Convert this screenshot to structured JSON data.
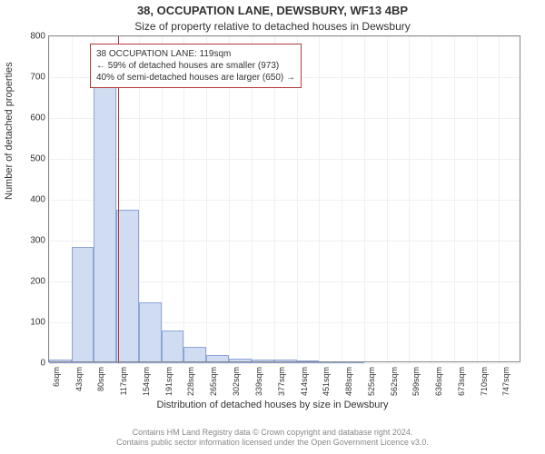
{
  "chart": {
    "type": "histogram",
    "title_line1": "38, OCCUPATION LANE, DEWSBURY, WF13 4BP",
    "title_line2": "Size of property relative to detached houses in Dewsbury",
    "xaxis_title": "Distribution of detached houses by size in Dewsbury",
    "yaxis_title": "Number of detached properties",
    "background_color": "#ffffff",
    "grid_color": "#eef0f4",
    "bar_fill": "#cfdcf2",
    "bar_border": "#8ea6d6",
    "marker_color": "#b23a3a",
    "marker_x_value": 119,
    "xlim": [
      6,
      784
    ],
    "ylim": [
      0,
      800
    ],
    "yticks": [
      0,
      100,
      200,
      300,
      400,
      500,
      600,
      700,
      800
    ],
    "xtick_positions": [
      6,
      43,
      80,
      117,
      154,
      191,
      228,
      265,
      302,
      339,
      377,
      414,
      451,
      488,
      525,
      562,
      599,
      636,
      673,
      710,
      747
    ],
    "xtick_labels": [
      "6sqm",
      "43sqm",
      "80sqm",
      "117sqm",
      "154sqm",
      "191sqm",
      "228sqm",
      "265sqm",
      "302sqm",
      "339sqm",
      "377sqm",
      "414sqm",
      "451sqm",
      "488sqm",
      "525sqm",
      "562sqm",
      "599sqm",
      "636sqm",
      "673sqm",
      "710sqm",
      "747sqm"
    ],
    "bars": [
      {
        "x_start": 6,
        "x_end": 43,
        "value": 8
      },
      {
        "x_start": 43,
        "x_end": 80,
        "value": 285
      },
      {
        "x_start": 80,
        "x_end": 117,
        "value": 680
      },
      {
        "x_start": 117,
        "x_end": 154,
        "value": 375
      },
      {
        "x_start": 154,
        "x_end": 191,
        "value": 150
      },
      {
        "x_start": 191,
        "x_end": 228,
        "value": 80
      },
      {
        "x_start": 228,
        "x_end": 265,
        "value": 40
      },
      {
        "x_start": 265,
        "x_end": 302,
        "value": 20
      },
      {
        "x_start": 302,
        "x_end": 339,
        "value": 12
      },
      {
        "x_start": 339,
        "x_end": 377,
        "value": 10
      },
      {
        "x_start": 377,
        "x_end": 414,
        "value": 8
      },
      {
        "x_start": 414,
        "x_end": 451,
        "value": 6
      },
      {
        "x_start": 451,
        "x_end": 488,
        "value": 4
      },
      {
        "x_start": 488,
        "x_end": 525,
        "value": 2
      },
      {
        "x_start": 525,
        "x_end": 562,
        "value": 0
      },
      {
        "x_start": 562,
        "x_end": 599,
        "value": 0
      },
      {
        "x_start": 599,
        "x_end": 636,
        "value": 0
      },
      {
        "x_start": 636,
        "x_end": 673,
        "value": 0
      },
      {
        "x_start": 673,
        "x_end": 710,
        "value": 0
      },
      {
        "x_start": 710,
        "x_end": 747,
        "value": 0
      }
    ],
    "annotation": {
      "line1": "38 OCCUPATION LANE: 119sqm",
      "line2": "← 59% of detached houses are smaller (973)",
      "line3": "40% of semi-detached houses are larger (650) →",
      "border_color": "#b23a3a",
      "text_color": "#333333",
      "fontsize": 10
    },
    "footnote_line1": "Contains HM Land Registry data © Crown copyright and database right 2024.",
    "footnote_line2": "Contains public sector information licensed under the Open Government Licence v3.0.",
    "title_fontsize": 13,
    "subtitle_fontsize": 12,
    "axis_title_fontsize": 11,
    "tick_fontsize": 10
  }
}
